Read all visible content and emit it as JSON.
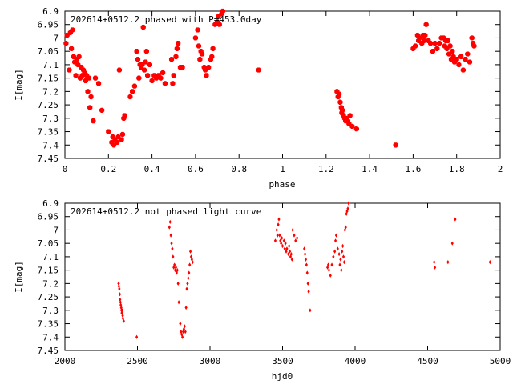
{
  "chart_data": [
    {
      "type": "scatter",
      "title": "202614+0512.2 phased with P=453.0day",
      "xlabel": "phase",
      "ylabel": "I[mag]",
      "xlim": [
        0,
        2
      ],
      "ylim": [
        7.45,
        6.9
      ],
      "y_inverted": true,
      "x_ticks": [
        "0",
        "0.2",
        "0.4",
        "0.6",
        "0.8",
        "1",
        "1.2",
        "1.4",
        "1.6",
        "1.8",
        "2"
      ],
      "x_tick_values": [
        0,
        0.2,
        0.4,
        0.6,
        0.8,
        1.0,
        1.2,
        1.4,
        1.6,
        1.8,
        2.0
      ],
      "y_ticks": [
        "6.9",
        "6.95",
        "7",
        "7.05",
        "7.1",
        "7.15",
        "7.2",
        "7.25",
        "7.3",
        "7.35",
        "7.4",
        "7.45"
      ],
      "y_tick_values": [
        6.9,
        6.95,
        7.0,
        7.05,
        7.1,
        7.15,
        7.2,
        7.25,
        7.3,
        7.35,
        7.4,
        7.45
      ],
      "marker": "filled-octagon",
      "point_color": "#ff0000",
      "grid": false,
      "series": [
        {
          "points": [
            [
              0.005,
              7.02
            ],
            [
              0.01,
              6.99
            ],
            [
              0.02,
              7.12
            ],
            [
              0.025,
              6.98
            ],
            [
              0.03,
              7.04
            ],
            [
              0.035,
              6.97
            ],
            [
              0.04,
              7.07
            ],
            [
              0.045,
              7.09
            ],
            [
              0.05,
              7.14
            ],
            [
              0.055,
              7.08
            ],
            [
              0.06,
              7.1
            ],
            [
              0.065,
              7.07
            ],
            [
              0.07,
              7.15
            ],
            [
              0.075,
              7.11
            ],
            [
              0.08,
              7.14
            ],
            [
              0.085,
              7.12
            ],
            [
              0.09,
              7.13
            ],
            [
              0.095,
              7.16
            ],
            [
              0.1,
              7.14
            ],
            [
              0.105,
              7.2
            ],
            [
              0.11,
              7.15
            ],
            [
              0.115,
              7.26
            ],
            [
              0.12,
              7.22
            ],
            [
              0.13,
              7.31
            ],
            [
              0.14,
              7.15
            ],
            [
              0.155,
              7.17
            ],
            [
              0.17,
              7.27
            ],
            [
              0.2,
              7.35
            ],
            [
              0.215,
              7.39
            ],
            [
              0.22,
              7.37
            ],
            [
              0.225,
              7.4
            ],
            [
              0.23,
              7.38
            ],
            [
              0.24,
              7.39
            ],
            [
              0.245,
              7.37
            ],
            [
              0.25,
              7.12
            ],
            [
              0.26,
              7.38
            ],
            [
              0.265,
              7.36
            ],
            [
              0.27,
              7.3
            ],
            [
              0.275,
              7.29
            ],
            [
              0.3,
              7.22
            ],
            [
              0.31,
              7.2
            ],
            [
              0.32,
              7.18
            ],
            [
              0.33,
              7.05
            ],
            [
              0.335,
              7.08
            ],
            [
              0.34,
              7.15
            ],
            [
              0.345,
              7.1
            ],
            [
              0.35,
              7.11
            ],
            [
              0.355,
              7.1
            ],
            [
              0.36,
              6.96
            ],
            [
              0.365,
              7.12
            ],
            [
              0.37,
              7.09
            ],
            [
              0.375,
              7.05
            ],
            [
              0.38,
              7.14
            ],
            [
              0.39,
              7.1
            ],
            [
              0.4,
              7.16
            ],
            [
              0.41,
              7.14
            ],
            [
              0.42,
              7.15
            ],
            [
              0.43,
              7.14
            ],
            [
              0.44,
              7.15
            ],
            [
              0.45,
              7.13
            ],
            [
              0.46,
              7.17
            ],
            [
              0.49,
              7.08
            ],
            [
              0.495,
              7.17
            ],
            [
              0.5,
              7.14
            ],
            [
              0.51,
              7.07
            ],
            [
              0.515,
              7.04
            ],
            [
              0.52,
              7.02
            ],
            [
              0.53,
              7.11
            ],
            [
              0.54,
              7.11
            ],
            [
              0.6,
              7.0
            ],
            [
              0.61,
              6.97
            ],
            [
              0.615,
              7.03
            ],
            [
              0.62,
              7.08
            ],
            [
              0.625,
              7.05
            ],
            [
              0.63,
              7.06
            ],
            [
              0.64,
              7.11
            ],
            [
              0.645,
              7.12
            ],
            [
              0.65,
              7.14
            ],
            [
              0.66,
              7.11
            ],
            [
              0.67,
              7.08
            ],
            [
              0.675,
              7.07
            ],
            [
              0.68,
              7.04
            ],
            [
              0.69,
              6.95
            ],
            [
              0.7,
              6.94
            ],
            [
              0.705,
              6.92
            ],
            [
              0.71,
              6.95
            ],
            [
              0.72,
              6.91
            ],
            [
              0.725,
              6.9
            ],
            [
              0.89,
              7.12
            ],
            [
              1.25,
              7.2
            ],
            [
              1.255,
              7.22
            ],
            [
              1.26,
              7.21
            ],
            [
              1.265,
              7.24
            ],
            [
              1.27,
              7.26
            ],
            [
              1.272,
              7.28
            ],
            [
              1.275,
              7.27
            ],
            [
              1.28,
              7.29
            ],
            [
              1.285,
              7.3
            ],
            [
              1.29,
              7.31
            ],
            [
              1.295,
              7.3
            ],
            [
              1.3,
              7.31
            ],
            [
              1.305,
              7.32
            ],
            [
              1.31,
              7.29
            ],
            [
              1.32,
              7.33
            ],
            [
              1.34,
              7.34
            ],
            [
              1.52,
              7.4
            ],
            [
              1.6,
              7.04
            ],
            [
              1.61,
              7.03
            ],
            [
              1.62,
              6.99
            ],
            [
              1.625,
              7.01
            ],
            [
              1.63,
              7.0
            ],
            [
              1.64,
              7.02
            ],
            [
              1.645,
              6.99
            ],
            [
              1.65,
              7.01
            ],
            [
              1.655,
              6.99
            ],
            [
              1.66,
              6.95
            ],
            [
              1.67,
              7.01
            ],
            [
              1.68,
              7.02
            ],
            [
              1.69,
              7.05
            ],
            [
              1.7,
              7.02
            ],
            [
              1.71,
              7.04
            ],
            [
              1.72,
              7.02
            ],
            [
              1.73,
              7.0
            ],
            [
              1.74,
              7.0
            ],
            [
              1.745,
              7.03
            ],
            [
              1.75,
              7.01
            ],
            [
              1.755,
              7.04
            ],
            [
              1.76,
              7.01
            ],
            [
              1.765,
              7.06
            ],
            [
              1.77,
              7.03
            ],
            [
              1.775,
              7.08
            ],
            [
              1.78,
              7.05
            ],
            [
              1.785,
              7.07
            ],
            [
              1.79,
              7.09
            ],
            [
              1.8,
              7.08
            ],
            [
              1.81,
              7.1
            ],
            [
              1.82,
              7.07
            ],
            [
              1.83,
              7.12
            ],
            [
              1.84,
              7.08
            ],
            [
              1.85,
              7.06
            ],
            [
              1.86,
              7.09
            ],
            [
              1.87,
              7.0
            ],
            [
              1.875,
              7.02
            ],
            [
              1.88,
              7.03
            ]
          ]
        }
      ]
    },
    {
      "type": "scatter",
      "title": "202614+0512.2 not phased light curve",
      "xlabel": "hjd0",
      "ylabel": "I[mag]",
      "xlim": [
        2000,
        5000
      ],
      "ylim": [
        7.45,
        6.9
      ],
      "y_inverted": true,
      "x_ticks": [
        "2000",
        "2500",
        "3000",
        "3500",
        "4000",
        "4500",
        "5000"
      ],
      "x_tick_values": [
        2000,
        2500,
        3000,
        3500,
        4000,
        4500,
        5000
      ],
      "y_ticks": [
        "6.9",
        "6.95",
        "7",
        "7.05",
        "7.1",
        "7.15",
        "7.2",
        "7.25",
        "7.3",
        "7.35",
        "7.4",
        "7.45"
      ],
      "y_tick_values": [
        6.9,
        6.95,
        7.0,
        7.05,
        7.1,
        7.15,
        7.2,
        7.25,
        7.3,
        7.35,
        7.4,
        7.45
      ],
      "marker": "diamond",
      "point_color": "#ff0000",
      "grid": false,
      "series": [
        {
          "points": [
            [
              2370,
              7.2
            ],
            [
              2372,
              7.21
            ],
            [
              2375,
              7.22
            ],
            [
              2378,
              7.24
            ],
            [
              2380,
              7.26
            ],
            [
              2383,
              7.27
            ],
            [
              2385,
              7.28
            ],
            [
              2388,
              7.29
            ],
            [
              2390,
              7.3
            ],
            [
              2392,
              7.31
            ],
            [
              2395,
              7.3
            ],
            [
              2398,
              7.32
            ],
            [
              2400,
              7.33
            ],
            [
              2405,
              7.34
            ],
            [
              2495,
              7.4
            ],
            [
              2720,
              6.99
            ],
            [
              2725,
              6.97
            ],
            [
              2730,
              7.02
            ],
            [
              2735,
              7.05
            ],
            [
              2740,
              7.07
            ],
            [
              2745,
              7.1
            ],
            [
              2750,
              7.14
            ],
            [
              2755,
              7.13
            ],
            [
              2760,
              7.15
            ],
            [
              2765,
              7.14
            ],
            [
              2770,
              7.16
            ],
            [
              2775,
              7.15
            ],
            [
              2780,
              7.2
            ],
            [
              2785,
              7.27
            ],
            [
              2795,
              7.35
            ],
            [
              2800,
              7.38
            ],
            [
              2805,
              7.39
            ],
            [
              2810,
              7.4
            ],
            [
              2815,
              7.38
            ],
            [
              2820,
              7.37
            ],
            [
              2825,
              7.36
            ],
            [
              2830,
              7.38
            ],
            [
              2835,
              7.29
            ],
            [
              2840,
              7.22
            ],
            [
              2845,
              7.2
            ],
            [
              2850,
              7.18
            ],
            [
              2855,
              7.16
            ],
            [
              2860,
              7.13
            ],
            [
              2865,
              7.08
            ],
            [
              2870,
              7.1
            ],
            [
              2875,
              7.11
            ],
            [
              2880,
              7.12
            ],
            [
              3450,
              7.04
            ],
            [
              3460,
              7.0
            ],
            [
              3465,
              7.02
            ],
            [
              3470,
              6.98
            ],
            [
              3475,
              6.96
            ],
            [
              3480,
              7.02
            ],
            [
              3485,
              7.04
            ],
            [
              3490,
              7.05
            ],
            [
              3495,
              7.03
            ],
            [
              3500,
              7.06
            ],
            [
              3510,
              7.04
            ],
            [
              3515,
              7.07
            ],
            [
              3520,
              7.05
            ],
            [
              3525,
              7.08
            ],
            [
              3530,
              7.07
            ],
            [
              3540,
              7.09
            ],
            [
              3545,
              7.06
            ],
            [
              3550,
              7.08
            ],
            [
              3555,
              7.1
            ],
            [
              3560,
              7.09
            ],
            [
              3565,
              7.11
            ],
            [
              3570,
              7.0
            ],
            [
              3580,
              7.02
            ],
            [
              3590,
              7.04
            ],
            [
              3600,
              7.03
            ],
            [
              3650,
              7.07
            ],
            [
              3655,
              7.09
            ],
            [
              3660,
              7.11
            ],
            [
              3665,
              7.13
            ],
            [
              3670,
              7.16
            ],
            [
              3675,
              7.2
            ],
            [
              3680,
              7.23
            ],
            [
              3690,
              7.3
            ],
            [
              3810,
              7.14
            ],
            [
              3815,
              7.13
            ],
            [
              3820,
              7.15
            ],
            [
              3830,
              7.17
            ],
            [
              3840,
              7.13
            ],
            [
              3850,
              7.1
            ],
            [
              3860,
              7.08
            ],
            [
              3865,
              7.04
            ],
            [
              3870,
              7.02
            ],
            [
              3880,
              7.07
            ],
            [
              3890,
              7.09
            ],
            [
              3895,
              7.13
            ],
            [
              3900,
              7.11
            ],
            [
              3905,
              7.15
            ],
            [
              3910,
              7.08
            ],
            [
              3915,
              7.06
            ],
            [
              3920,
              7.1
            ],
            [
              3925,
              7.12
            ],
            [
              3930,
              7.0
            ],
            [
              3935,
              6.99
            ],
            [
              3940,
              6.94
            ],
            [
              3945,
              6.93
            ],
            [
              3950,
              6.92
            ],
            [
              3955,
              6.9
            ],
            [
              4545,
              7.12
            ],
            [
              4550,
              7.14
            ],
            [
              4640,
              7.12
            ],
            [
              4670,
              7.05
            ],
            [
              4690,
              6.96
            ],
            [
              4930,
              7.12
            ]
          ]
        }
      ]
    }
  ]
}
